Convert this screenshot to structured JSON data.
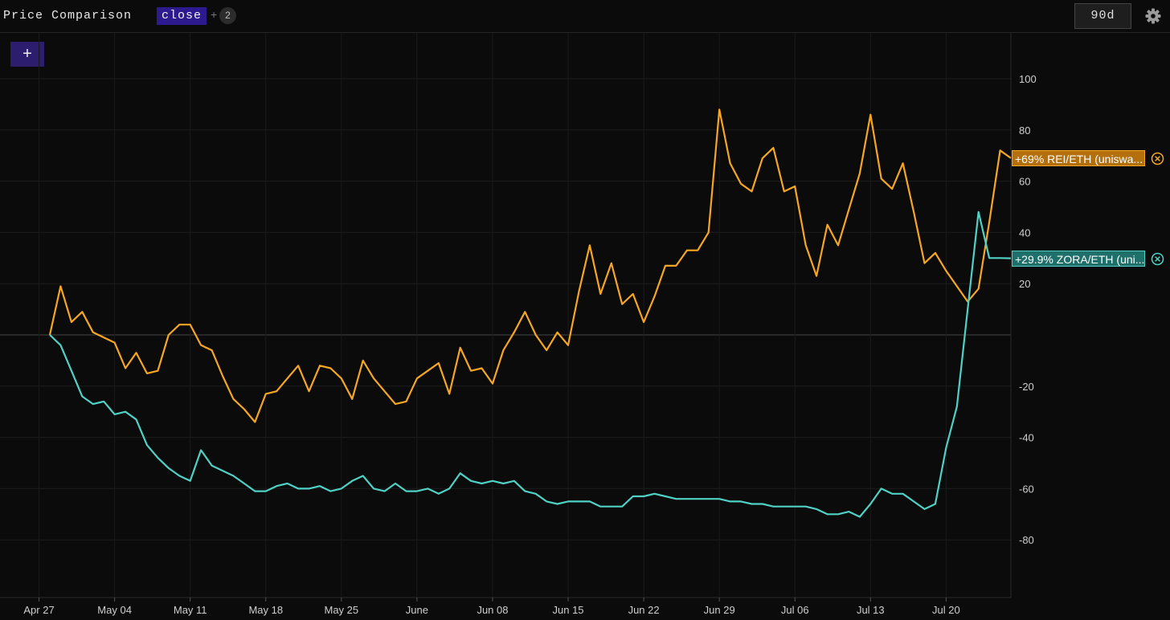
{
  "header": {
    "title": "Price Comparison",
    "metric": "close",
    "plus": "+",
    "series_count": "2",
    "range": "90d",
    "add_label": "+"
  },
  "icons": {
    "settings": "gear-icon",
    "remove_series": "close-circle-icon"
  },
  "chart_data": {
    "type": "line",
    "title": "",
    "xlabel": "",
    "ylabel": "",
    "ylim": [
      -105,
      115
    ],
    "y_ticks": [
      100,
      80,
      60,
      40,
      20,
      -20,
      -40,
      -60,
      -80
    ],
    "x_ticks": [
      "Apr 27",
      "May 04",
      "May 11",
      "May 18",
      "May 25",
      "June",
      "Jun 08",
      "Jun 15",
      "Jun 22",
      "Jun 29",
      "Jul 06",
      "Jul 13",
      "Jul 20"
    ],
    "grid": true,
    "legend": "right-edge end labels",
    "x": [
      "2020-04-28",
      "2020-04-29",
      "2020-04-30",
      "2020-05-01",
      "2020-05-02",
      "2020-05-03",
      "2020-05-04",
      "2020-05-05",
      "2020-05-06",
      "2020-05-07",
      "2020-05-08",
      "2020-05-09",
      "2020-05-10",
      "2020-05-11",
      "2020-05-12",
      "2020-05-13",
      "2020-05-14",
      "2020-05-15",
      "2020-05-16",
      "2020-05-17",
      "2020-05-18",
      "2020-05-19",
      "2020-05-20",
      "2020-05-21",
      "2020-05-22",
      "2020-05-23",
      "2020-05-24",
      "2020-05-25",
      "2020-05-26",
      "2020-05-27",
      "2020-05-28",
      "2020-05-29",
      "2020-05-30",
      "2020-05-31",
      "2020-06-01",
      "2020-06-02",
      "2020-06-03",
      "2020-06-04",
      "2020-06-05",
      "2020-06-06",
      "2020-06-07",
      "2020-06-08",
      "2020-06-09",
      "2020-06-10",
      "2020-06-11",
      "2020-06-12",
      "2020-06-13",
      "2020-06-14",
      "2020-06-15",
      "2020-06-16",
      "2020-06-17",
      "2020-06-18",
      "2020-06-19",
      "2020-06-20",
      "2020-06-21",
      "2020-06-22",
      "2020-06-23",
      "2020-06-24",
      "2020-06-25",
      "2020-06-26",
      "2020-06-27",
      "2020-06-28",
      "2020-06-29",
      "2020-06-30",
      "2020-07-01",
      "2020-07-02",
      "2020-07-03",
      "2020-07-04",
      "2020-07-05",
      "2020-07-06",
      "2020-07-07",
      "2020-07-08",
      "2020-07-09",
      "2020-07-10",
      "2020-07-11",
      "2020-07-12",
      "2020-07-13",
      "2020-07-14",
      "2020-07-15",
      "2020-07-16",
      "2020-07-17",
      "2020-07-18",
      "2020-07-19",
      "2020-07-20",
      "2020-07-21",
      "2020-07-22",
      "2020-07-23",
      "2020-07-24",
      "2020-07-25",
      "2020-07-26"
    ],
    "series": [
      {
        "name": "REI/ETH (uniswa...",
        "end_label": "+69% REI/ETH (uniswa...",
        "color": "#f5a623",
        "values": [
          0,
          19,
          5,
          9,
          1,
          -1,
          -3,
          -13,
          -7,
          -15,
          -14,
          0,
          4,
          4,
          -4,
          -6,
          -16,
          -25,
          -29,
          -34,
          -23,
          -22,
          -17,
          -12,
          -22,
          -12,
          -13,
          -17,
          -25,
          -10,
          -17,
          -22,
          -27,
          -26,
          -17,
          -14,
          -11,
          -23,
          -5,
          -14,
          -13,
          -19,
          -6,
          1,
          9,
          0,
          -6,
          1,
          -4,
          17,
          35,
          16,
          28,
          12,
          16,
          5,
          15,
          27,
          27,
          33,
          33,
          40,
          88,
          67,
          59,
          56,
          69,
          73,
          56,
          58,
          35,
          23,
          43,
          35,
          49,
          63,
          86,
          61,
          57,
          67,
          48,
          28,
          32,
          25,
          19,
          13,
          18,
          44,
          72,
          69
        ],
        "last": 69
      },
      {
        "name": "ZORA/ETH (uni...",
        "end_label": "+29.9% ZORA/ETH (uni...",
        "color": "#4fd1c5",
        "values": [
          0,
          -4,
          -14,
          -24,
          -27,
          -26,
          -31,
          -30,
          -33,
          -43,
          -48,
          -52,
          -55,
          -57,
          -45,
          -51,
          -53,
          -55,
          -58,
          -61,
          -61,
          -59,
          -58,
          -60,
          -60,
          -59,
          -61,
          -60,
          -57,
          -55,
          -60,
          -61,
          -58,
          -61,
          -61,
          -60,
          -62,
          -60,
          -54,
          -57,
          -58,
          -57,
          -58,
          -57,
          -61,
          -62,
          -65,
          -66,
          -65,
          -65,
          -65,
          -67,
          -67,
          -67,
          -63,
          -63,
          -62,
          -63,
          -64,
          -64,
          -64,
          -64,
          -64,
          -65,
          -65,
          -66,
          -66,
          -67,
          -67,
          -67,
          -67,
          -68,
          -70,
          -70,
          -69,
          -71,
          -66,
          -60,
          -62,
          -62,
          -65,
          -68,
          -66,
          -44,
          -28,
          10,
          48,
          30,
          30,
          29.9
        ],
        "last": 29.9
      }
    ]
  }
}
